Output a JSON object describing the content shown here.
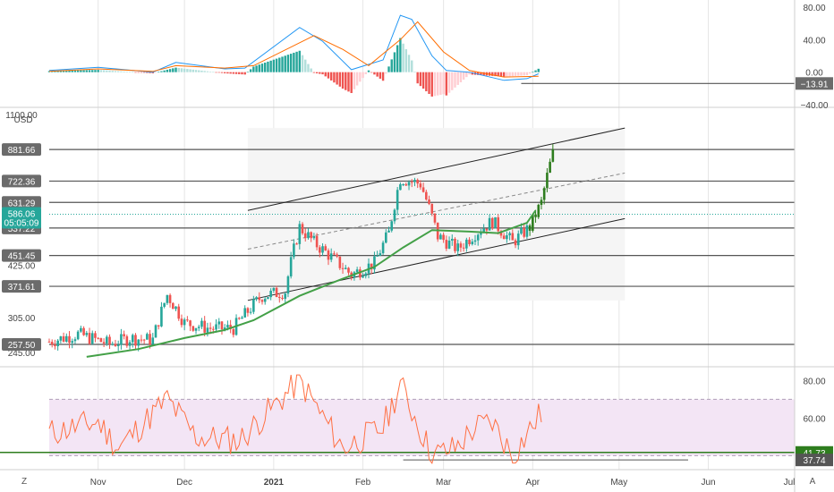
{
  "colors": {
    "bull": "#26a69a",
    "bear": "#ef5350",
    "bull_recent": "#2e7d1e",
    "ma": "#43a047",
    "macd_line": "#2196f3",
    "signal_line": "#ff6d00",
    "rsi_line": "#ff7043",
    "rsi_band": "#f3e5f5",
    "hline": "#555555",
    "channel": "#222222",
    "grid": "#e6e6e6"
  },
  "price_axis": {
    "unit": "USD",
    "ticks": [
      "1100.00",
      "425.00",
      "305.00",
      "245.00"
    ],
    "level_labels": [
      {
        "label": "881.66",
        "value": 881.66
      },
      {
        "label": "722.36",
        "value": 722.36
      },
      {
        "label": "631.29",
        "value": 631.29
      },
      {
        "label": "537.22",
        "value": 537.22
      },
      {
        "label": "451.45",
        "value": 451.45
      },
      {
        "label": "371.61",
        "value": 371.61
      },
      {
        "label": "257.50",
        "value": 257.5
      }
    ],
    "current_price": {
      "label": "586.06",
      "value": 586.06,
      "countdown": "05:05:09"
    }
  },
  "macd_axis": {
    "ticks": [
      "80.00",
      "40.00",
      "0.00",
      "−40.00"
    ],
    "level_label": "−13.91",
    "level_value": -13.91
  },
  "rsi_axis": {
    "ticks": [
      "80.00",
      "60.00"
    ],
    "levels": [
      {
        "label": "41.73",
        "value": 41.73,
        "color": "#2e7d1e"
      },
      {
        "label": "37.74",
        "value": 37.74,
        "color": "#555555"
      }
    ]
  },
  "time_axis": {
    "labels": [
      "Nov",
      "Dec",
      "2021",
      "Feb",
      "Mar",
      "Apr",
      "May",
      "Jun",
      "Jul"
    ],
    "bold_label": "2021"
  },
  "corner_buttons": {
    "left": "Z",
    "right": "A"
  },
  "chart_data": {
    "type": "candlestick",
    "x_range": [
      "2020-10-15",
      "2021-07-01"
    ],
    "price": {
      "scale": "log",
      "ylim": [
        230,
        1100
      ],
      "horizontal_levels": [
        881.66,
        722.36,
        631.29,
        537.22,
        451.45,
        371.61,
        257.5
      ],
      "channel": {
        "upper": [
          [
            "2020-12-23",
            600
          ],
          [
            "2021-05-03",
            1010
          ]
        ],
        "middle": [
          [
            "2020-12-23",
            470
          ],
          [
            "2021-05-03",
            760
          ]
        ],
        "lower": [
          [
            "2020-12-23",
            340
          ],
          [
            "2021-05-03",
            570
          ]
        ]
      },
      "anchors": [
        [
          "2020-10-15",
          262
        ],
        [
          "2020-10-25",
          275
        ],
        [
          "2020-11-05",
          258
        ],
        [
          "2020-11-12",
          268
        ],
        [
          "2020-11-20",
          265
        ],
        [
          "2020-11-25",
          352
        ],
        [
          "2020-12-01",
          295
        ],
        [
          "2020-12-10",
          285
        ],
        [
          "2020-12-18",
          285
        ],
        [
          "2020-12-28",
          350
        ],
        [
          "2021-01-05",
          360
        ],
        [
          "2021-01-10",
          540
        ],
        [
          "2021-01-15",
          490
        ],
        [
          "2021-01-22",
          440
        ],
        [
          "2021-01-28",
          400
        ],
        [
          "2021-02-05",
          430
        ],
        [
          "2021-02-10",
          520
        ],
        [
          "2021-02-14",
          735
        ],
        [
          "2021-02-21",
          710
        ],
        [
          "2021-02-27",
          510
        ],
        [
          "2021-03-06",
          470
        ],
        [
          "2021-03-12",
          520
        ],
        [
          "2021-03-18",
          560
        ],
        [
          "2021-03-25",
          490
        ],
        [
          "2021-03-31",
          540
        ],
        [
          "2021-04-04",
          630
        ],
        [
          "2021-04-08",
          860
        ]
      ],
      "moving_average": [
        [
          "2020-10-28",
          238
        ],
        [
          "2020-11-15",
          250
        ],
        [
          "2020-12-01",
          268
        ],
        [
          "2020-12-15",
          282
        ],
        [
          "2020-12-25",
          300
        ],
        [
          "2021-01-10",
          350
        ],
        [
          "2021-01-25",
          390
        ],
        [
          "2021-02-05",
          420
        ],
        [
          "2021-02-15",
          475
        ],
        [
          "2021-02-25",
          530
        ],
        [
          "2021-03-10",
          525
        ],
        [
          "2021-03-20",
          520
        ],
        [
          "2021-03-30",
          555
        ],
        [
          "2021-04-02",
          600
        ]
      ]
    },
    "macd": {
      "ylim": [
        -40,
        80
      ],
      "macd_line": [
        [
          "2020-10-15",
          2
        ],
        [
          "2020-11-01",
          6
        ],
        [
          "2020-11-20",
          0
        ],
        [
          "2020-11-28",
          12
        ],
        [
          "2020-12-15",
          4
        ],
        [
          "2020-12-22",
          5
        ],
        [
          "2021-01-10",
          55
        ],
        [
          "2021-01-18",
          38
        ],
        [
          "2021-01-28",
          3
        ],
        [
          "2021-02-08",
          15
        ],
        [
          "2021-02-14",
          70
        ],
        [
          "2021-02-18",
          65
        ],
        [
          "2021-02-25",
          20
        ],
        [
          "2021-03-02",
          2
        ],
        [
          "2021-03-10",
          0
        ],
        [
          "2021-03-22",
          -10
        ],
        [
          "2021-03-30",
          -8
        ],
        [
          "2021-04-03",
          -2
        ]
      ],
      "signal_line": [
        [
          "2020-10-15",
          1
        ],
        [
          "2020-11-01",
          4
        ],
        [
          "2020-11-20",
          1
        ],
        [
          "2020-11-28",
          8
        ],
        [
          "2020-12-15",
          5
        ],
        [
          "2020-12-25",
          8
        ],
        [
          "2021-01-15",
          45
        ],
        [
          "2021-01-25",
          28
        ],
        [
          "2021-02-03",
          8
        ],
        [
          "2021-02-14",
          40
        ],
        [
          "2021-02-20",
          62
        ],
        [
          "2021-03-01",
          25
        ],
        [
          "2021-03-10",
          2
        ],
        [
          "2021-03-22",
          -6
        ],
        [
          "2021-04-03",
          -5
        ]
      ]
    },
    "rsi": {
      "ylim": [
        34,
        84
      ],
      "band": [
        40,
        70
      ],
      "anchors": [
        [
          "2020-10-15",
          52
        ],
        [
          "2020-11-01",
          58
        ],
        [
          "2020-11-08",
          44
        ],
        [
          "2020-11-25",
          70
        ],
        [
          "2020-12-05",
          50
        ],
        [
          "2020-12-20",
          48
        ],
        [
          "2021-01-10",
          80
        ],
        [
          "2021-01-25",
          44
        ],
        [
          "2021-02-08",
          55
        ],
        [
          "2021-02-14",
          78
        ],
        [
          "2021-02-25",
          40
        ],
        [
          "2021-03-05",
          44
        ],
        [
          "2021-03-12",
          55
        ],
        [
          "2021-03-18",
          58
        ],
        [
          "2021-03-25",
          40
        ],
        [
          "2021-04-04",
          63
        ]
      ],
      "segment": [
        [
          "2021-02-15",
          37.74
        ],
        [
          "2021-05-25",
          37.74
        ]
      ]
    }
  }
}
